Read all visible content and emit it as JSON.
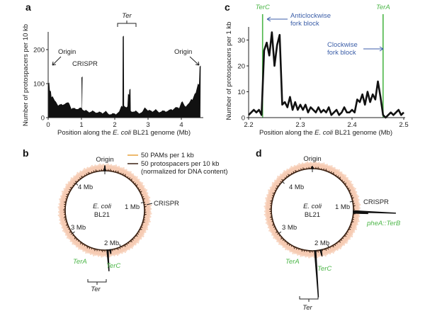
{
  "colors": {
    "bars": "#111111",
    "ter_line": "#4cb648",
    "blue_text": "#3b5ea8",
    "pam_halo": "#f6cbb3",
    "pam_legend": "#e8a33c",
    "protospacer": "#3a2112"
  },
  "chart_data": [
    {
      "panel": "a",
      "type": "area",
      "xlabel_parts": [
        "Position along the ",
        "E. coli",
        " BL21 genome (Mb)"
      ],
      "ylabel": "Number of protospacers per 10 kb",
      "xlim": [
        0,
        4.6
      ],
      "ylim": [
        0,
        250
      ],
      "xticks": [
        "0",
        "1",
        "2",
        "3",
        "4"
      ],
      "xtick_values": [
        0,
        1,
        2,
        3,
        4
      ],
      "yticks": [
        "0",
        "100",
        "200"
      ],
      "ytick_values": [
        0,
        100,
        200
      ],
      "annotations": {
        "origin_left": "Origin",
        "crispr": "CRISPR",
        "origin_right": "Origin",
        "ter": "Ter"
      },
      "points": [
        [
          0,
          100
        ],
        [
          0.05,
          80
        ],
        [
          0.1,
          60
        ],
        [
          0.2,
          50
        ],
        [
          0.3,
          35
        ],
        [
          0.4,
          40
        ],
        [
          0.5,
          40
        ],
        [
          0.6,
          45
        ],
        [
          0.7,
          25
        ],
        [
          0.8,
          28
        ],
        [
          0.9,
          25
        ],
        [
          0.98,
          30
        ],
        [
          1.0,
          118
        ],
        [
          1.02,
          25
        ],
        [
          1.1,
          20
        ],
        [
          1.2,
          18
        ],
        [
          1.3,
          18
        ],
        [
          1.4,
          17
        ],
        [
          1.5,
          15
        ],
        [
          1.6,
          15
        ],
        [
          1.7,
          17
        ],
        [
          1.8,
          12
        ],
        [
          1.9,
          10
        ],
        [
          2.0,
          12
        ],
        [
          2.1,
          15
        ],
        [
          2.2,
          35
        ],
        [
          2.24,
          238
        ],
        [
          2.28,
          35
        ],
        [
          2.35,
          30
        ],
        [
          2.4,
          70
        ],
        [
          2.44,
          82
        ],
        [
          2.48,
          20
        ],
        [
          2.6,
          18
        ],
        [
          2.7,
          15
        ],
        [
          2.8,
          15
        ],
        [
          2.9,
          30
        ],
        [
          3.0,
          20
        ],
        [
          3.1,
          20
        ],
        [
          3.2,
          22
        ],
        [
          3.3,
          18
        ],
        [
          3.4,
          18
        ],
        [
          3.5,
          20
        ],
        [
          3.6,
          20
        ],
        [
          3.7,
          25
        ],
        [
          3.8,
          28
        ],
        [
          3.9,
          30
        ],
        [
          4.0,
          45
        ],
        [
          4.1,
          35
        ],
        [
          4.2,
          40
        ],
        [
          4.3,
          55
        ],
        [
          4.4,
          70
        ],
        [
          4.5,
          100
        ],
        [
          4.55,
          150
        ]
      ]
    },
    {
      "panel": "c",
      "type": "line",
      "xlabel_parts": [
        "Position along the ",
        "E. coli",
        " BL21 genome (Mb)"
      ],
      "ylabel": "Number of protospacers per 1 kb",
      "xlim": [
        2.2,
        2.5
      ],
      "ylim": [
        0,
        35
      ],
      "xticks": [
        "2.2",
        "2.3",
        "2.4",
        "2.5"
      ],
      "xtick_values": [
        2.2,
        2.3,
        2.4,
        2.5
      ],
      "yticks": [
        "0",
        "10",
        "20",
        "30"
      ],
      "ytick_values": [
        0,
        10,
        20,
        30
      ],
      "markers": [
        {
          "label": "TerC",
          "x": 2.227
        },
        {
          "label": "TerA",
          "x": 2.46
        }
      ],
      "annotations": {
        "anticlockwise_1": "Anticlockwise",
        "anticlockwise_2": "fork block",
        "clockwise_1": "Clockwise",
        "clockwise_2": "fork block"
      },
      "points": [
        [
          2.2,
          1
        ],
        [
          2.205,
          2
        ],
        [
          2.21,
          3
        ],
        [
          2.215,
          2
        ],
        [
          2.22,
          3
        ],
        [
          2.225,
          1
        ],
        [
          2.23,
          26
        ],
        [
          2.235,
          29
        ],
        [
          2.24,
          24
        ],
        [
          2.245,
          33
        ],
        [
          2.25,
          20
        ],
        [
          2.255,
          28
        ],
        [
          2.26,
          32
        ],
        [
          2.265,
          5
        ],
        [
          2.27,
          6
        ],
        [
          2.275,
          4
        ],
        [
          2.28,
          8
        ],
        [
          2.285,
          3
        ],
        [
          2.29,
          6
        ],
        [
          2.295,
          3
        ],
        [
          2.3,
          5
        ],
        [
          2.305,
          3
        ],
        [
          2.31,
          5
        ],
        [
          2.315,
          2
        ],
        [
          2.32,
          4
        ],
        [
          2.325,
          3
        ],
        [
          2.33,
          2
        ],
        [
          2.335,
          4
        ],
        [
          2.34,
          2
        ],
        [
          2.345,
          3
        ],
        [
          2.35,
          2
        ],
        [
          2.355,
          4
        ],
        [
          2.36,
          1
        ],
        [
          2.365,
          2
        ],
        [
          2.37,
          3
        ],
        [
          2.375,
          1
        ],
        [
          2.38,
          2
        ],
        [
          2.385,
          4
        ],
        [
          2.39,
          2
        ],
        [
          2.395,
          2
        ],
        [
          2.4,
          3
        ],
        [
          2.405,
          2
        ],
        [
          2.41,
          7
        ],
        [
          2.415,
          6
        ],
        [
          2.42,
          9
        ],
        [
          2.425,
          5
        ],
        [
          2.43,
          10
        ],
        [
          2.435,
          6
        ],
        [
          2.44,
          9
        ],
        [
          2.445,
          7
        ],
        [
          2.45,
          14
        ],
        [
          2.455,
          8
        ],
        [
          2.46,
          1
        ],
        [
          2.465,
          0
        ],
        [
          2.47,
          1
        ],
        [
          2.475,
          2
        ],
        [
          2.48,
          1
        ],
        [
          2.485,
          2
        ],
        [
          2.49,
          3
        ],
        [
          2.495,
          1
        ],
        [
          2.5,
          2
        ]
      ]
    },
    {
      "panel": "b",
      "type": "circular",
      "genome_mb": 4.6,
      "legend": [
        "50 PAMs per 1 kb",
        "50 protospacers per 10 kb",
        "(normalized for DNA content)"
      ],
      "labels": {
        "origin": "Origin",
        "mb4": "4 Mb",
        "mb1": "1 Mb",
        "mb3": "3 Mb",
        "mb2": "2 Mb",
        "strain1": "E. coli",
        "strain2": "BL21",
        "crispr": "CRISPR",
        "tera": "TerA",
        "terc": "TerC",
        "ter": "Ter"
      },
      "peaks": [
        [
          0,
          25
        ],
        [
          2.2,
          20
        ],
        [
          2.25,
          100
        ]
      ]
    },
    {
      "panel": "d",
      "type": "circular",
      "genome_mb": 4.6,
      "labels": {
        "origin": "Origin",
        "mb4": "4 Mb",
        "mb1": "1 Mb",
        "mb3": "3 Mb",
        "mb2": "2 Mb",
        "strain1": "E. coli",
        "strain2": "BL21",
        "crispr": "CRISPR",
        "pheA": "pheA::TerB",
        "tera": "TerA",
        "terc": "TerC",
        "ter": "Ter"
      },
      "peaks": [
        [
          0,
          12
        ],
        [
          1.18,
          200
        ],
        [
          1.2,
          70
        ],
        [
          2.15,
          30
        ],
        [
          2.25,
          220
        ]
      ]
    }
  ]
}
